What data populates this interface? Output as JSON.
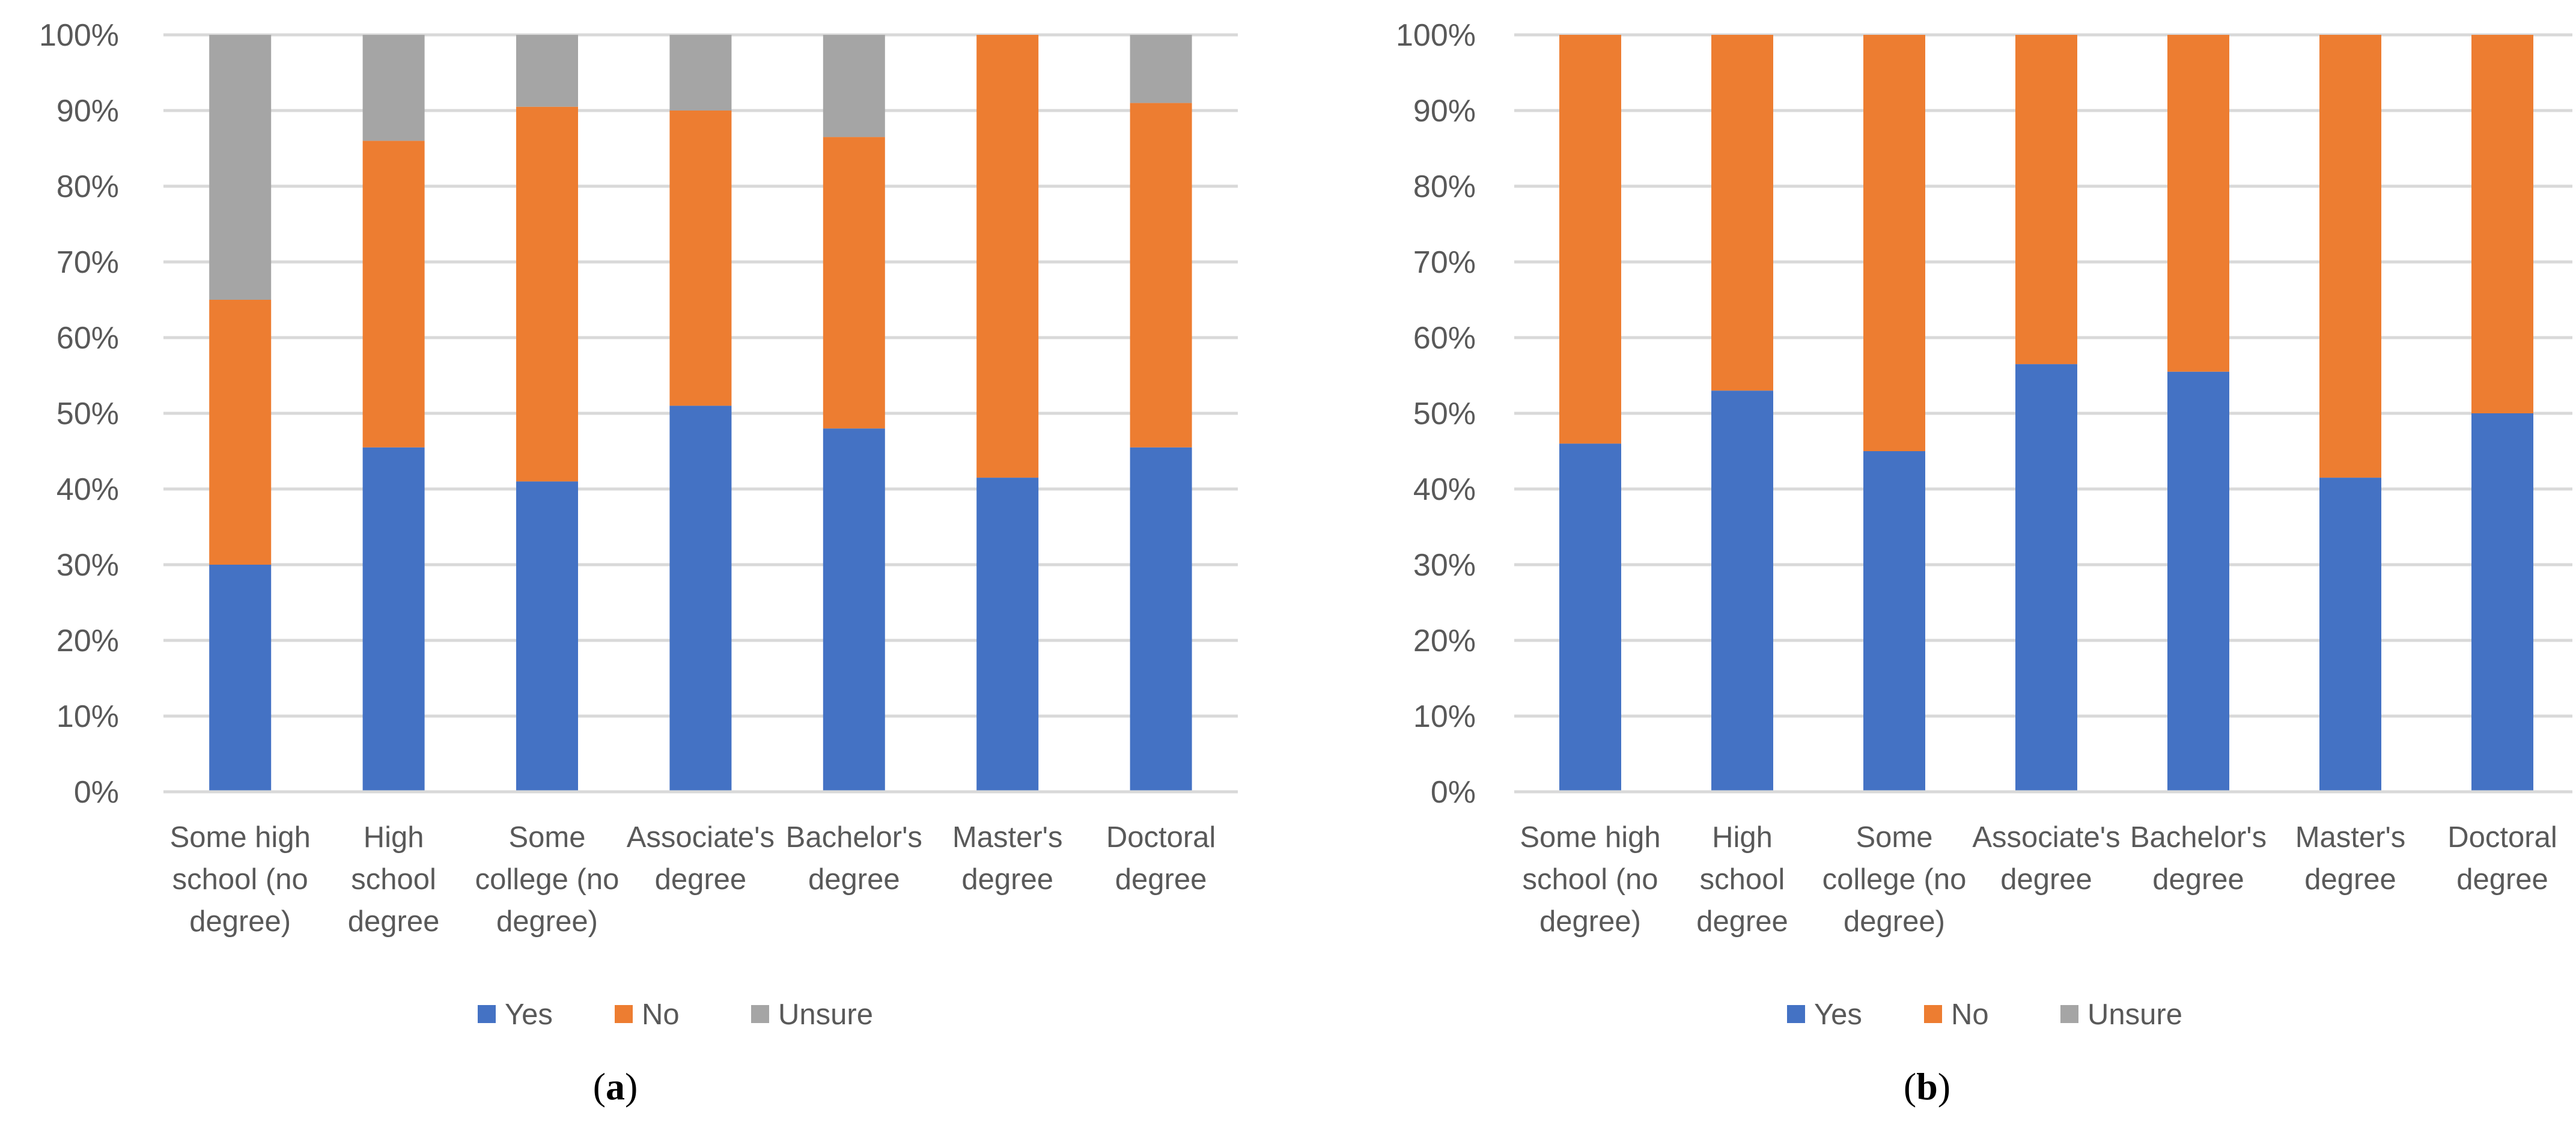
{
  "chart_data": [
    {
      "type": "bar",
      "stacked": true,
      "panel_label": {
        "prefix": "(",
        "letter": "a",
        "suffix": ")"
      },
      "categories": [
        [
          "Some high",
          "school (no",
          "degree)"
        ],
        [
          "High",
          "school",
          "degree"
        ],
        [
          "Some",
          "college (no",
          "degree)"
        ],
        [
          "Associate's",
          "degree"
        ],
        [
          "Bachelor's",
          "degree"
        ],
        [
          "Master's",
          "degree"
        ],
        [
          "Doctoral",
          "degree"
        ]
      ],
      "series": [
        {
          "name": "Yes",
          "color": "#4472C4",
          "values": [
            30,
            45.5,
            41,
            51,
            48,
            41.5,
            45.5
          ]
        },
        {
          "name": "No",
          "color": "#ED7D31",
          "values": [
            35,
            40.5,
            49.5,
            39,
            38.5,
            58.5,
            45.5
          ]
        },
        {
          "name": "Unsure",
          "color": "#A5A5A5",
          "values": [
            35,
            14,
            9.5,
            10,
            13.5,
            0,
            9
          ]
        }
      ],
      "y_ticks": [
        "0%",
        "10%",
        "20%",
        "30%",
        "40%",
        "50%",
        "60%",
        "70%",
        "80%",
        "90%",
        "100%"
      ],
      "ylim": [
        0,
        100
      ],
      "grid": true,
      "legend_position": "bottom"
    },
    {
      "type": "bar",
      "stacked": true,
      "panel_label": {
        "prefix": "(",
        "letter": "b",
        "suffix": ")"
      },
      "categories": [
        [
          "Some high",
          "school (no",
          "degree)"
        ],
        [
          "High",
          "school",
          "degree"
        ],
        [
          "Some",
          "college (no",
          "degree)"
        ],
        [
          "Associate's",
          "degree"
        ],
        [
          "Bachelor's",
          "degree"
        ],
        [
          "Master's",
          "degree"
        ],
        [
          "Doctoral",
          "degree"
        ]
      ],
      "series": [
        {
          "name": "Yes",
          "color": "#4472C4",
          "values": [
            46,
            53,
            45,
            56.5,
            55.5,
            41.5,
            50
          ]
        },
        {
          "name": "No",
          "color": "#ED7D31",
          "values": [
            54,
            47,
            55,
            43.5,
            44.5,
            58.5,
            50
          ]
        },
        {
          "name": "Unsure",
          "color": "#A5A5A5",
          "values": [
            0,
            0,
            0,
            0,
            0,
            0,
            0
          ]
        }
      ],
      "y_ticks": [
        "0%",
        "10%",
        "20%",
        "30%",
        "40%",
        "50%",
        "60%",
        "70%",
        "80%",
        "90%",
        "100%"
      ],
      "ylim": [
        0,
        100
      ],
      "grid": true,
      "legend_position": "bottom"
    }
  ]
}
